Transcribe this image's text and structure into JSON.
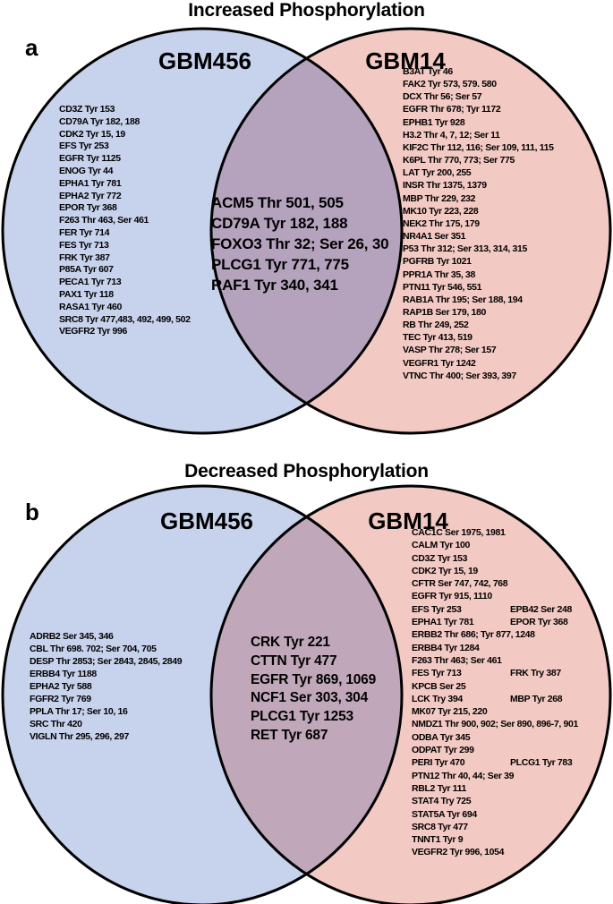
{
  "styles": {
    "left_fill": "#c7d2ec",
    "right_fill": "#f3c9c3",
    "overlap_fill_a": "#b5a3bd",
    "overlap_fill_b": "#c0a8ba",
    "outline": "#000000"
  },
  "panel_a": {
    "label": "a",
    "title": "Increased Phosphorylation",
    "left_circle": {
      "label": "GBM456",
      "fill": "#c7d2ec"
    },
    "right_circle": {
      "label": "GBM14",
      "fill": "#f3c9c3"
    },
    "overlap_fill": "#b5a3bd",
    "left_items": [
      "CD3Z Tyr 153",
      "CD79A Tyr 182, 188",
      "CDK2 Tyr 15, 19",
      "EFS Tyr 253",
      "EGFR Tyr 1125",
      "ENOG Tyr 44",
      "EPHA1 Tyr 781",
      "EPHA2 Tyr 772",
      "EPOR Tyr 368",
      "F263 Thr 463, Ser 461",
      "FER Tyr 714",
      "FES Tyr 713",
      "FRK Tyr 387",
      "P85A Tyr 607",
      "PECA1 Tyr 713",
      "PAX1 Tyr 118",
      "RASA1 Tyr 460",
      "SRC8 Tyr 477,483, 492, 499, 502",
      "VEGFR2 Tyr 996"
    ],
    "overlap_items": [
      "ACM5 Thr 501, 505",
      "CD79A Tyr 182, 188",
      "FOXO3 Thr 32; Ser 26, 30",
      "PLCG1 Tyr 771, 775",
      "RAF1 Tyr 340, 341"
    ],
    "right_items": [
      "B3AT Tyr 46",
      "FAK2 Tyr 573, 579. 580",
      "DCX Thr 56; Ser 57",
      "EGFR Thr 678; Tyr 1172",
      "EPHB1 Tyr 928",
      "H3.2 Thr 4, 7, 12; Ser 11",
      "KIF2C Thr 112, 116; Ser 109, 111, 115",
      "K6PL Thr 770, 773; Ser 775",
      "LAT Tyr 200, 255",
      "INSR Thr 1375, 1379",
      "MBP Thr 229, 232",
      "MK10 Tyr 223, 228",
      "NEK2 Thr 175, 179",
      "NR4A1 Ser 351",
      "P53 Thr 312; Ser 313, 314, 315",
      "PGFRB Tyr 1021",
      "PPR1A Thr 35, 38",
      "PTN11 Tyr 546, 551",
      "RAB1A Thr 195; Ser 188, 194",
      "RAP1B Ser 179, 180",
      "RB Thr 249, 252",
      "TEC Tyr 413, 519",
      "VASP Thr 278; Ser 157",
      "VEGFR1 Tyr 1242",
      "VTNC Thr 400; Ser 393, 397"
    ]
  },
  "panel_b": {
    "label": "b",
    "title": "Decreased Phosphorylation",
    "left_circle": {
      "label": "GBM456",
      "fill": "#c7d2ec"
    },
    "right_circle": {
      "label": "GBM14",
      "fill": "#f3c9c3"
    },
    "overlap_fill": "#c0a8ba",
    "left_items": [
      "ADRB2 Ser 345, 346",
      "CBL Thr 698. 702; Ser 704, 705",
      "DESP Thr 2853; Ser 2843, 2845, 2849",
      "ERBB4 Tyr 1188",
      "EPHA2 Tyr 588",
      "FGFR2 Tyr 769",
      "PPLA Thr 17; Ser 10, 16",
      "SRC Thr 420",
      "VIGLN Thr 295, 296, 297"
    ],
    "overlap_items": [
      "CRK Tyr 221",
      "CTTN Tyr 477",
      "EGFR Tyr 869, 1069",
      "NCF1 Ser 303, 304",
      "PLCG1 Tyr 1253",
      "RET Tyr 687"
    ],
    "right_items": [
      {
        "c1": "CAC1C Ser 1975, 1981",
        "c2": ""
      },
      {
        "c1": "CALM Tyr 100",
        "c2": ""
      },
      {
        "c1": "CD3Z Tyr 153",
        "c2": ""
      },
      {
        "c1": "CDK2 Tyr 15, 19",
        "c2": ""
      },
      {
        "c1": "CFTR Ser 747, 742, 768",
        "c2": ""
      },
      {
        "c1": "EGFR Tyr 915, 1110",
        "c2": ""
      },
      {
        "c1": "EFS Tyr 253",
        "c2": "EPB42 Ser 248"
      },
      {
        "c1": "EPHA1 Tyr 781",
        "c2": "EPOR Tyr 368"
      },
      {
        "c1": "ERBB2 Thr 686; Tyr 877, 1248",
        "c2": ""
      },
      {
        "c1": "ERBB4 Tyr 1284",
        "c2": ""
      },
      {
        "c1": "F263 Thr 463; Ser 461",
        "c2": ""
      },
      {
        "c1": "FES Tyr 713",
        "c2": "FRK Try 387"
      },
      {
        "c1": "KPCB Ser 25",
        "c2": ""
      },
      {
        "c1": "LCK Try 394",
        "c2": "MBP Tyr 268"
      },
      {
        "c1": "MK07 Tyr 215, 220",
        "c2": ""
      },
      {
        "c1": "NMDZ1 Thr 900, 902; Ser 890, 896-7, 901",
        "c2": ""
      },
      {
        "c1": "ODBA Tyr 345",
        "c2": ""
      },
      {
        "c1": "ODPAT Tyr 299",
        "c2": ""
      },
      {
        "c1": "PERI Tyr 470",
        "c2": "PLCG1 Tyr 783"
      },
      {
        "c1": "PTN12 Thr 40, 44; Ser 39",
        "c2": ""
      },
      {
        "c1": "RBL2 Tyr 111",
        "c2": ""
      },
      {
        "c1": "STAT4 Try 725",
        "c2": ""
      },
      {
        "c1": "STAT5A Tyr 694",
        "c2": ""
      },
      {
        "c1": "SRC8 Tyr 477",
        "c2": ""
      },
      {
        "c1": "TNNT1 Tyr 9",
        "c2": ""
      },
      {
        "c1": "VEGFR2 Tyr 996, 1054",
        "c2": ""
      }
    ]
  }
}
